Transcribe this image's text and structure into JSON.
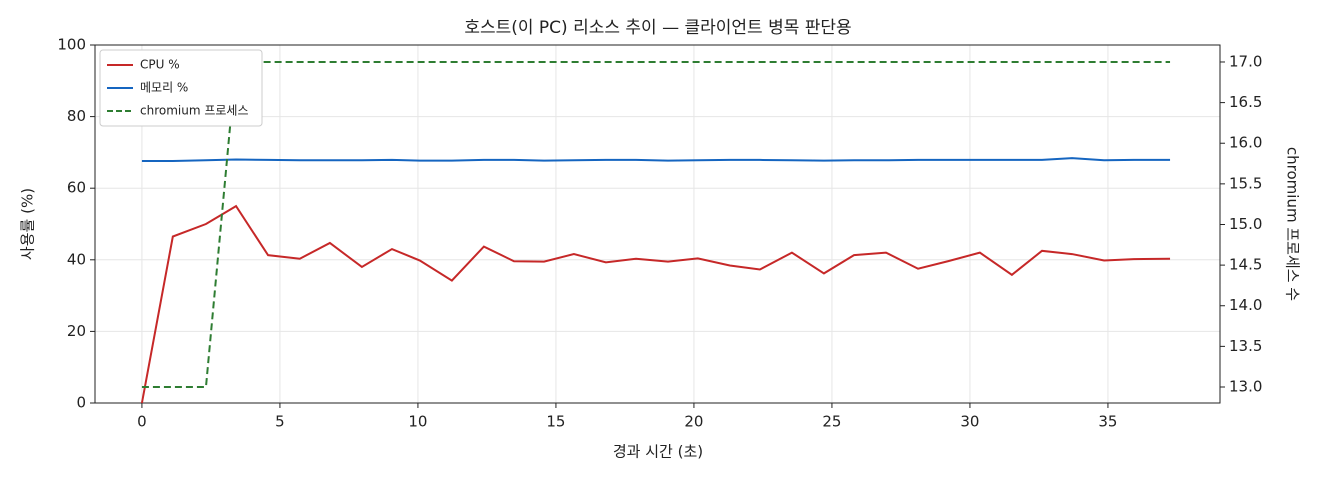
{
  "chart_data": {
    "type": "line",
    "title": "호스트(이 PC) 리소스 추이 — 클라이언트 병목 판단용",
    "x_label": "경과 시간 (초)",
    "y_label": "사용률 (%)",
    "y2_label": "chromium 프로세스 수",
    "x": [
      0,
      1.12,
      2.32,
      3.41,
      4.57,
      5.72,
      6.81,
      7.97,
      9.06,
      10.07,
      11.23,
      12.39,
      13.48,
      14.57,
      15.65,
      16.81,
      17.9,
      19.06,
      20.14,
      21.3,
      22.39,
      23.55,
      24.71,
      25.8,
      26.96,
      28.12,
      29.2,
      30.36,
      31.52,
      32.61,
      33.7,
      34.86,
      35.94,
      37.25
    ],
    "series": [
      {
        "name": "CPU %",
        "color": "#c62828",
        "linestyle": "solid",
        "axis": "y",
        "values": [
          0,
          46.5,
          50,
          55,
          41.3,
          40.3,
          44.7,
          38,
          43,
          39.8,
          34.2,
          43.7,
          39.6,
          39.5,
          41.6,
          39.3,
          40.3,
          39.5,
          40.4,
          38.4,
          37.3,
          42,
          36.2,
          41.3,
          42,
          37.5,
          39.6,
          42,
          35.8,
          42.5,
          41.6,
          39.8,
          40.2,
          40.3
        ]
      },
      {
        "name": "메모리 %",
        "color": "#1565c0",
        "linestyle": "solid",
        "axis": "y",
        "values": [
          67.6,
          67.6,
          67.8,
          68,
          67.9,
          67.8,
          67.8,
          67.8,
          67.9,
          67.7,
          67.7,
          67.9,
          67.9,
          67.7,
          67.8,
          67.9,
          67.9,
          67.7,
          67.8,
          67.9,
          67.9,
          67.8,
          67.7,
          67.8,
          67.8,
          67.9,
          67.9,
          67.9,
          67.9,
          67.9,
          68.4,
          67.8,
          67.9,
          67.9
        ]
      },
      {
        "name": "chromium 프로세스",
        "color": "#2e7d32",
        "linestyle": "dashed",
        "axis": "y2",
        "values": [
          13,
          13,
          13,
          17,
          17,
          17,
          17,
          17,
          17,
          17,
          17,
          17,
          17,
          17,
          17,
          17,
          17,
          17,
          17,
          17,
          17,
          17,
          17,
          17,
          17,
          17,
          17,
          17,
          17,
          17,
          17,
          17,
          17,
          17
        ]
      }
    ],
    "xlim": [
      -1.7,
      39.06
    ],
    "xticks": [
      0,
      5,
      10,
      15,
      20,
      25,
      30,
      35
    ],
    "ylim": [
      0,
      100
    ],
    "yticks": [
      0,
      20,
      40,
      60,
      80,
      100
    ],
    "y2lim": [
      12.803,
      17.209
    ],
    "y2ticks": [
      {
        "value": 13,
        "label": "13.0"
      },
      {
        "value": 13.5,
        "label": "13.5"
      },
      {
        "value": 14,
        "label": "14.0"
      },
      {
        "value": 14.5,
        "label": "14.5"
      },
      {
        "value": 15,
        "label": "15.0"
      },
      {
        "value": 15.5,
        "label": "15.5"
      },
      {
        "value": 16,
        "label": "16.0"
      },
      {
        "value": 16.5,
        "label": "16.5"
      },
      {
        "value": 17,
        "label": "17.0"
      }
    ],
    "grid": true,
    "legend": "upper left"
  }
}
